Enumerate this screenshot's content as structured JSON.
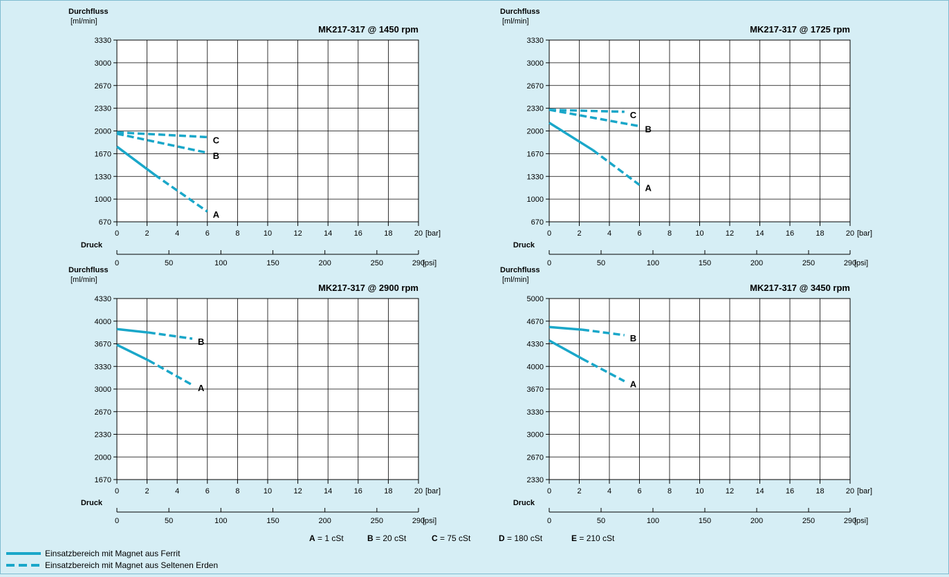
{
  "colors": {
    "line": "#1aa7c9",
    "background": "#d6eef5",
    "grid": "#000000"
  },
  "chart_data": [
    {
      "type": "line",
      "title": "MK217-317 @ 1450 rpm",
      "ylabel_line1": "Durchfluss",
      "ylabel_line2": "[ml/min]",
      "xlabel": "Druck",
      "x_unit": "[bar]",
      "x2_unit": "[psi]",
      "y_ticks": [
        "670",
        "1000",
        "1330",
        "1670",
        "2000",
        "2330",
        "2670",
        "3000",
        "3330"
      ],
      "x_ticks": [
        "0",
        "2",
        "4",
        "6",
        "8",
        "10",
        "12",
        "14",
        "16",
        "18",
        "20"
      ],
      "x2_ticks": [
        "0",
        "50",
        "100",
        "150",
        "200",
        "250",
        "290"
      ],
      "xlim": [
        0,
        20
      ],
      "ylim": [
        670,
        3330
      ],
      "grid": true,
      "series": [
        {
          "name": "A",
          "solid": [
            [
              0,
              1770
            ],
            [
              2.5,
              1360
            ]
          ],
          "dashed": [
            [
              2.5,
              1360
            ],
            [
              6,
              820
            ]
          ]
        },
        {
          "name": "B",
          "dashed": [
            [
              0,
              1960
            ],
            [
              6,
              1680
            ]
          ]
        },
        {
          "name": "C",
          "dashed": [
            [
              0,
              1980
            ],
            [
              6,
              1910
            ]
          ]
        }
      ]
    },
    {
      "type": "line",
      "title": "MK217-317 @ 1725 rpm",
      "ylabel_line1": "Durchfluss",
      "ylabel_line2": "[ml/min]",
      "xlabel": "Druck",
      "x_unit": "[bar]",
      "x2_unit": "[psi]",
      "y_ticks": [
        "670",
        "1000",
        "1330",
        "1670",
        "2000",
        "2330",
        "2670",
        "3000",
        "3330"
      ],
      "x_ticks": [
        "0",
        "2",
        "4",
        "6",
        "8",
        "10",
        "12",
        "14",
        "16",
        "18",
        "20"
      ],
      "x2_ticks": [
        "0",
        "50",
        "100",
        "150",
        "200",
        "250",
        "290"
      ],
      "xlim": [
        0,
        20
      ],
      "ylim": [
        670,
        3330
      ],
      "grid": true,
      "series": [
        {
          "name": "A",
          "solid": [
            [
              0,
              2120
            ],
            [
              2.9,
              1720
            ]
          ],
          "dashed": [
            [
              2.9,
              1720
            ],
            [
              6,
              1210
            ]
          ]
        },
        {
          "name": "B",
          "dashed": [
            [
              0,
              2310
            ],
            [
              6,
              2070
            ]
          ]
        },
        {
          "name": "C",
          "dashed": [
            [
              0,
              2310
            ],
            [
              5,
              2280
            ]
          ]
        }
      ]
    },
    {
      "type": "line",
      "title": "MK217-317 @ 2900 rpm",
      "ylabel_line1": "Durchfluss",
      "ylabel_line2": "[ml/min]",
      "xlabel": "Druck",
      "x_unit": "[bar]",
      "x2_unit": "[psi]",
      "y_ticks": [
        "1670",
        "2000",
        "2330",
        "2670",
        "3000",
        "3330",
        "3670",
        "4000",
        "4330"
      ],
      "x_ticks": [
        "0",
        "2",
        "4",
        "6",
        "8",
        "10",
        "12",
        "14",
        "16",
        "18",
        "20"
      ],
      "x2_ticks": [
        "0",
        "50",
        "100",
        "150",
        "200",
        "250",
        "290"
      ],
      "xlim": [
        0,
        20
      ],
      "ylim": [
        1670,
        4330
      ],
      "grid": true,
      "series": [
        {
          "name": "A",
          "solid": [
            [
              0,
              3650
            ],
            [
              2.1,
              3420
            ]
          ],
          "dashed": [
            [
              2.1,
              3420
            ],
            [
              5,
              3060
            ]
          ]
        },
        {
          "name": "B",
          "solid": [
            [
              0,
              3880
            ],
            [
              2.1,
              3830
            ]
          ],
          "dashed": [
            [
              2.1,
              3830
            ],
            [
              5,
              3740
            ]
          ]
        }
      ]
    },
    {
      "type": "line",
      "title": "MK217-317 @ 3450 rpm",
      "ylabel_line1": "Durchfluss",
      "ylabel_line2": "[ml/min]",
      "xlabel": "Druck",
      "x_unit": "[bar]",
      "x2_unit": "[psi]",
      "y_ticks": [
        "2330",
        "2670",
        "3000",
        "3330",
        "3670",
        "4000",
        "4330",
        "4670",
        "5000"
      ],
      "x_ticks": [
        "0",
        "2",
        "4",
        "6",
        "8",
        "10",
        "12",
        "14",
        "16",
        "18",
        "20"
      ],
      "x2_ticks": [
        "0",
        "50",
        "100",
        "150",
        "200",
        "250",
        "290"
      ],
      "xlim": [
        0,
        20
      ],
      "ylim": [
        2330,
        5000
      ],
      "grid": true,
      "series": [
        {
          "name": "A",
          "solid": [
            [
              0,
              4380
            ],
            [
              2.2,
              4110
            ]
          ],
          "dashed": [
            [
              2.2,
              4110
            ],
            [
              5,
              3780
            ]
          ]
        },
        {
          "name": "B",
          "solid": [
            [
              0,
              4580
            ],
            [
              2.2,
              4540
            ]
          ],
          "dashed": [
            [
              2.2,
              4540
            ],
            [
              5,
              4460
            ]
          ]
        }
      ]
    }
  ],
  "viscosity": [
    {
      "key": "A",
      "value": "= 1 cSt"
    },
    {
      "key": "B",
      "value": "= 20 cSt"
    },
    {
      "key": "C",
      "value": "= 75 cSt"
    },
    {
      "key": "D",
      "value": "= 180 cSt"
    },
    {
      "key": "E",
      "value": "= 210 cSt"
    }
  ],
  "legend": {
    "solid_label": "Einsatzbereich mit Magnet aus Ferrit",
    "dashed_label": "Einsatzbereich mit Magnet aus Seltenen Erden"
  }
}
